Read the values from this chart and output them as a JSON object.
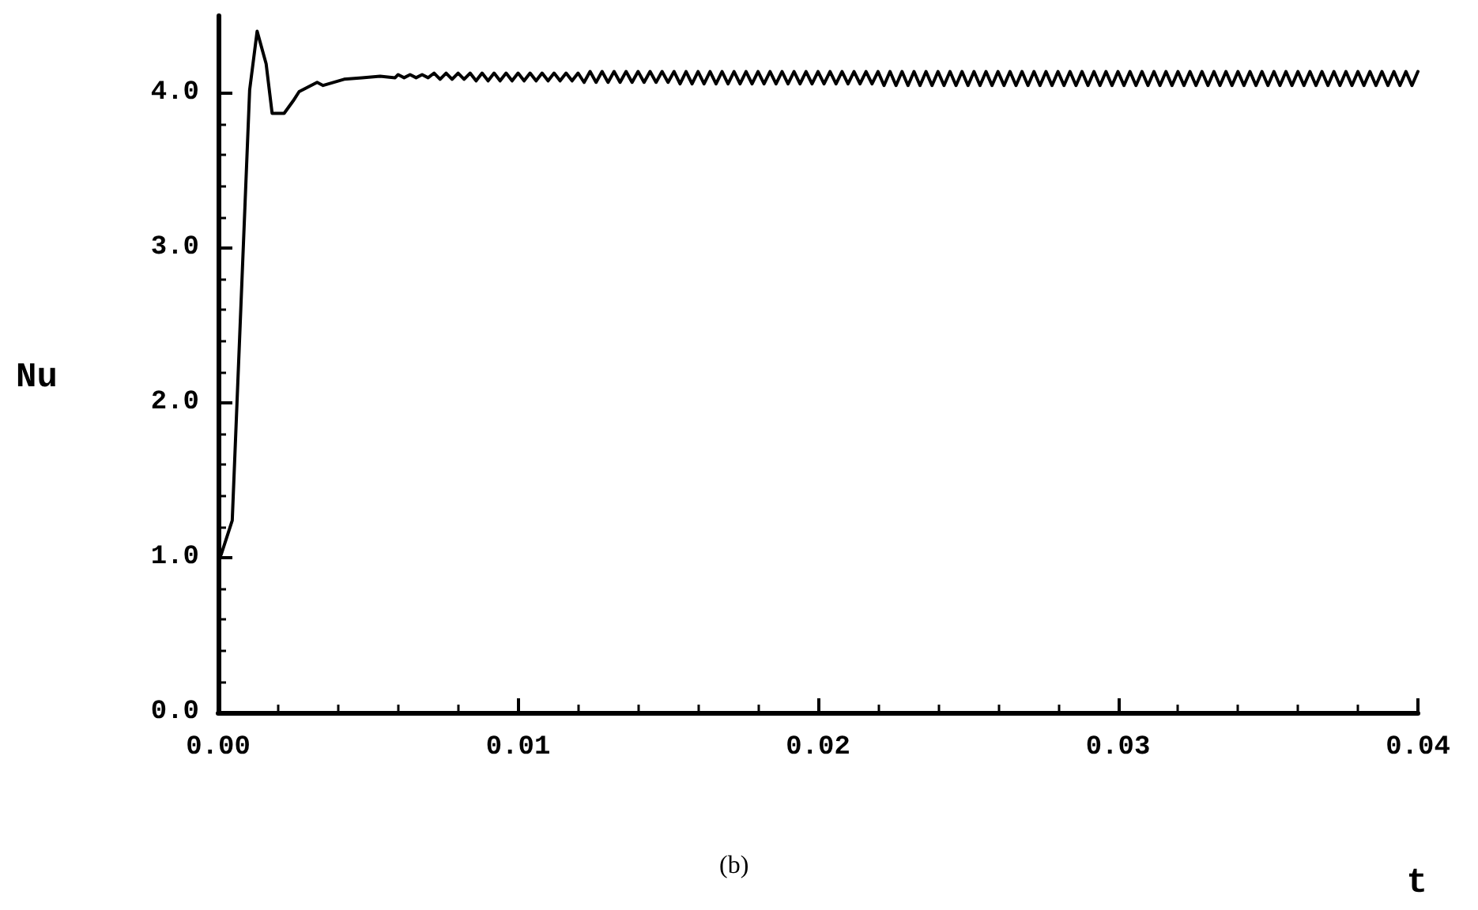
{
  "chart_data": {
    "type": "line",
    "xlabel": "t",
    "ylabel": "Nu",
    "annotations": [
      "(b)"
    ],
    "xlim": [
      0,
      0.04
    ],
    "ylim": [
      0,
      4.5
    ],
    "xticks": [
      {
        "value": 0,
        "label": "0.00"
      },
      0.01,
      0.02,
      0.03,
      0.04
    ],
    "yticks": [
      {
        "value": 0,
        "label": "0.0"
      },
      {
        "value": 1,
        "label": "1.0"
      },
      {
        "value": 2,
        "label": "2.0"
      },
      {
        "value": 3,
        "label": "3.0"
      },
      {
        "value": 4,
        "label": "4.0"
      }
    ],
    "grid": false,
    "marker": "none",
    "line_style": "solid",
    "series": [
      {
        "color": "#000000",
        "x": [
          0,
          0.0001,
          0.00047,
          0.0008,
          0.00105,
          0.0013,
          0.0016,
          0.0018,
          0.0022,
          0.0025,
          0.0027,
          0.0033,
          0.0035,
          0.0042,
          0.0048,
          0.0054,
          0.0059,
          0.006,
          0.0062,
          0.0064,
          0.0066,
          0.0068,
          0.007,
          0.0072,
          0.0074,
          0.0076,
          0.0078,
          0.008,
          0.0082,
          0.0084,
          0.0086,
          0.0088,
          0.009,
          0.0092,
          0.0094,
          0.0096,
          0.0098,
          0.01,
          0.0102,
          0.0104,
          0.0106,
          0.0108,
          0.011,
          0.0112,
          0.0114,
          0.0116,
          0.0118,
          0.012,
          0.0122,
          0.0124,
          0.0126,
          0.0128,
          0.013,
          0.0132,
          0.0134,
          0.0136,
          0.0138,
          0.014,
          0.0142,
          0.0144,
          0.0146,
          0.0148,
          0.015,
          0.0152,
          0.0154,
          0.0156,
          0.0158,
          0.016,
          0.0162,
          0.0164,
          0.0166,
          0.0168,
          0.017,
          0.0172,
          0.0174,
          0.0176,
          0.0178,
          0.018,
          0.0182,
          0.0184,
          0.0186,
          0.0188,
          0.019,
          0.0192,
          0.0194,
          0.0196,
          0.0198,
          0.02,
          0.0202,
          0.0204,
          0.0206,
          0.0208,
          0.021,
          0.0212,
          0.0214,
          0.0216,
          0.0218,
          0.022,
          0.0222,
          0.0224,
          0.0226,
          0.0228,
          0.023,
          0.0232,
          0.0234,
          0.0236,
          0.0238,
          0.024,
          0.0242,
          0.0244,
          0.0246,
          0.0248,
          0.025,
          0.0252,
          0.0254,
          0.0256,
          0.0258,
          0.026,
          0.0262,
          0.0264,
          0.0266,
          0.0268,
          0.027,
          0.0272,
          0.0274,
          0.0276,
          0.0278,
          0.028,
          0.0282,
          0.0284,
          0.0286,
          0.0288,
          0.029,
          0.0292,
          0.0294,
          0.0296,
          0.0298,
          0.03,
          0.0302,
          0.0304,
          0.0306,
          0.0308,
          0.031,
          0.0312,
          0.0314,
          0.0316,
          0.0318,
          0.032,
          0.0322,
          0.0324,
          0.0326,
          0.0328,
          0.033,
          0.0332,
          0.0334,
          0.0336,
          0.0338,
          0.034,
          0.0342,
          0.0344,
          0.0346,
          0.0348,
          0.035,
          0.0352,
          0.0354,
          0.0356,
          0.0358,
          0.036,
          0.0362,
          0.0364,
          0.0366,
          0.0368,
          0.037,
          0.0372,
          0.0374,
          0.0376,
          0.0378,
          0.038,
          0.0382,
          0.0384,
          0.0386,
          0.0388,
          0.039,
          0.0392,
          0.0394,
          0.0396,
          0.0398,
          0.04
        ],
        "values": [
          1.0,
          1.02,
          1.24,
          2.82,
          4.02,
          4.4,
          4.19,
          3.87,
          3.87,
          3.95,
          4.01,
          4.07,
          4.05,
          4.09,
          4.1,
          4.11,
          4.1,
          4.12,
          4.1,
          4.12,
          4.1,
          4.12,
          4.1,
          4.13,
          4.09,
          4.13,
          4.09,
          4.13,
          4.09,
          4.13,
          4.08,
          4.13,
          4.08,
          4.13,
          4.08,
          4.13,
          4.08,
          4.13,
          4.08,
          4.13,
          4.08,
          4.13,
          4.08,
          4.13,
          4.08,
          4.13,
          4.08,
          4.13,
          4.07,
          4.14,
          4.07,
          4.14,
          4.07,
          4.14,
          4.07,
          4.14,
          4.07,
          4.14,
          4.07,
          4.14,
          4.07,
          4.14,
          4.07,
          4.14,
          4.06,
          4.14,
          4.06,
          4.14,
          4.06,
          4.14,
          4.06,
          4.14,
          4.06,
          4.14,
          4.06,
          4.14,
          4.06,
          4.14,
          4.06,
          4.14,
          4.06,
          4.14,
          4.06,
          4.14,
          4.06,
          4.14,
          4.06,
          4.14,
          4.06,
          4.14,
          4.06,
          4.14,
          4.06,
          4.14,
          4.06,
          4.14,
          4.06,
          4.14,
          4.05,
          4.14,
          4.05,
          4.14,
          4.05,
          4.14,
          4.05,
          4.14,
          4.05,
          4.14,
          4.05,
          4.14,
          4.05,
          4.14,
          4.05,
          4.14,
          4.05,
          4.14,
          4.05,
          4.14,
          4.05,
          4.14,
          4.05,
          4.14,
          4.05,
          4.14,
          4.05,
          4.14,
          4.05,
          4.14,
          4.05,
          4.14,
          4.05,
          4.14,
          4.05,
          4.14,
          4.05,
          4.14,
          4.05,
          4.14,
          4.05,
          4.14,
          4.05,
          4.14,
          4.05,
          4.14,
          4.05,
          4.14,
          4.05,
          4.14,
          4.05,
          4.14,
          4.05,
          4.14,
          4.05,
          4.14,
          4.05,
          4.14,
          4.05,
          4.14,
          4.05,
          4.14,
          4.05,
          4.14,
          4.05,
          4.14,
          4.05,
          4.14,
          4.05,
          4.14,
          4.05,
          4.14,
          4.05,
          4.14,
          4.05,
          4.14,
          4.05,
          4.14,
          4.05,
          4.14,
          4.05,
          4.14,
          4.05,
          4.14,
          4.05,
          4.14,
          4.05,
          4.14,
          4.05,
          4.14
        ]
      }
    ]
  }
}
